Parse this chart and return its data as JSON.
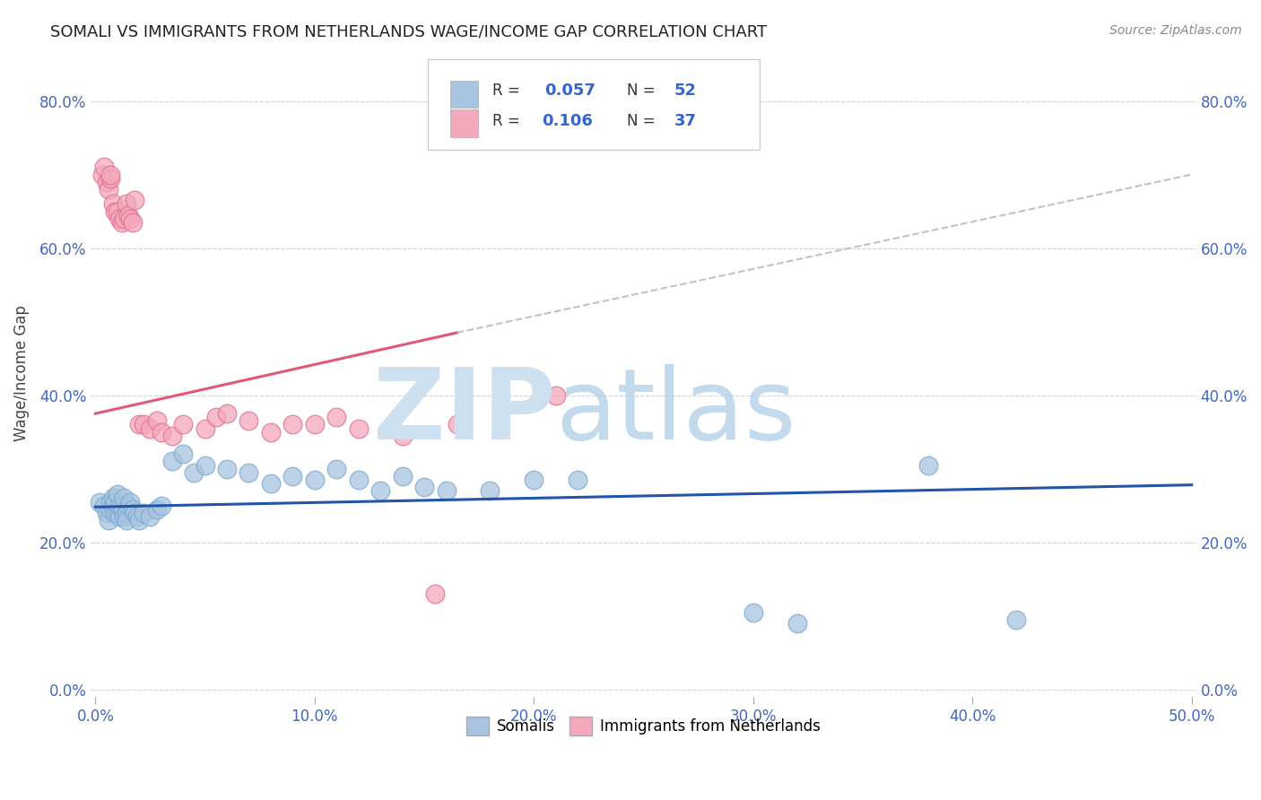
{
  "title": "SOMALI VS IMMIGRANTS FROM NETHERLANDS WAGE/INCOME GAP CORRELATION CHART",
  "source": "Source: ZipAtlas.com",
  "ylabel": "Wage/Income Gap",
  "xlim": [
    -0.002,
    0.502
  ],
  "ylim": [
    -0.01,
    0.87
  ],
  "xticks": [
    0.0,
    0.1,
    0.2,
    0.3,
    0.4,
    0.5
  ],
  "yticks": [
    0.0,
    0.2,
    0.4,
    0.6,
    0.8
  ],
  "xticklabels": [
    "0.0%",
    "10.0%",
    "20.0%",
    "30.0%",
    "40.0%",
    "50.0%"
  ],
  "yticklabels": [
    "0.0%",
    "20.0%",
    "40.0%",
    "60.0%",
    "80.0%"
  ],
  "somali_color": "#a8c4e0",
  "somali_edge_color": "#7aabcf",
  "somali_line_color": "#2255aa",
  "netherlands_color": "#f4a8bc",
  "netherlands_edge_color": "#e07090",
  "netherlands_line_color": "#e05878",
  "dash_color": "#ccbbcc",
  "watermark_zip_color": "#cce0f0",
  "watermark_atlas_color": "#b8d4e8",
  "background_color": "#ffffff",
  "grid_color": "#cccccc",
  "somali_x": [
    0.002,
    0.004,
    0.005,
    0.006,
    0.007,
    0.007,
    0.008,
    0.008,
    0.009,
    0.009,
    0.01,
    0.01,
    0.011,
    0.011,
    0.012,
    0.012,
    0.013,
    0.013,
    0.014,
    0.014,
    0.015,
    0.016,
    0.017,
    0.018,
    0.019,
    0.02,
    0.022,
    0.025,
    0.028,
    0.03,
    0.035,
    0.04,
    0.045,
    0.05,
    0.06,
    0.07,
    0.08,
    0.09,
    0.1,
    0.11,
    0.12,
    0.13,
    0.14,
    0.15,
    0.16,
    0.18,
    0.2,
    0.22,
    0.3,
    0.32,
    0.38,
    0.42
  ],
  "somali_y": [
    0.255,
    0.25,
    0.24,
    0.23,
    0.245,
    0.255,
    0.25,
    0.26,
    0.24,
    0.255,
    0.265,
    0.24,
    0.25,
    0.235,
    0.245,
    0.25,
    0.26,
    0.235,
    0.24,
    0.23,
    0.25,
    0.255,
    0.245,
    0.24,
    0.235,
    0.23,
    0.24,
    0.235,
    0.245,
    0.25,
    0.31,
    0.32,
    0.295,
    0.305,
    0.3,
    0.295,
    0.28,
    0.29,
    0.285,
    0.3,
    0.285,
    0.27,
    0.29,
    0.275,
    0.27,
    0.27,
    0.285,
    0.285,
    0.105,
    0.09,
    0.305,
    0.095
  ],
  "netherlands_x": [
    0.003,
    0.004,
    0.005,
    0.006,
    0.007,
    0.007,
    0.008,
    0.009,
    0.01,
    0.011,
    0.012,
    0.013,
    0.014,
    0.015,
    0.016,
    0.017,
    0.018,
    0.02,
    0.022,
    0.025,
    0.028,
    0.03,
    0.035,
    0.04,
    0.05,
    0.055,
    0.06,
    0.07,
    0.08,
    0.09,
    0.1,
    0.11,
    0.12,
    0.14,
    0.155,
    0.165,
    0.21
  ],
  "netherlands_y": [
    0.7,
    0.71,
    0.69,
    0.68,
    0.695,
    0.7,
    0.66,
    0.65,
    0.65,
    0.64,
    0.635,
    0.64,
    0.66,
    0.645,
    0.64,
    0.635,
    0.665,
    0.36,
    0.36,
    0.355,
    0.365,
    0.35,
    0.345,
    0.36,
    0.355,
    0.37,
    0.375,
    0.365,
    0.35,
    0.36,
    0.36,
    0.37,
    0.355,
    0.345,
    0.13,
    0.36,
    0.4
  ],
  "somali_line_x0": 0.0,
  "somali_line_y0": 0.248,
  "somali_line_x1": 0.5,
  "somali_line_y1": 0.278,
  "netherlands_line_x0": 0.0,
  "netherlands_line_y0": 0.375,
  "netherlands_line_x1": 0.165,
  "netherlands_line_y1": 0.485,
  "dash_line_x0": 0.165,
  "dash_line_y0": 0.485,
  "dash_line_x1": 0.5,
  "dash_line_y1": 0.7
}
